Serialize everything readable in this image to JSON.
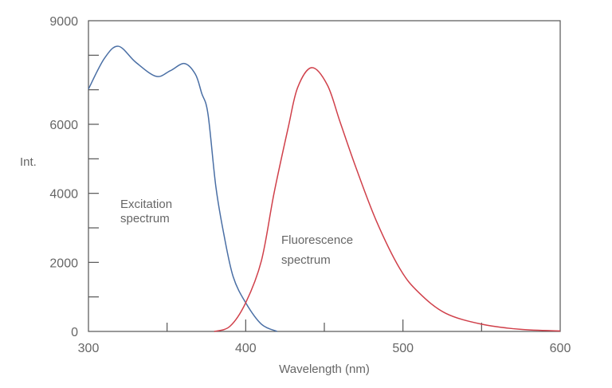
{
  "chart_data": {
    "type": "line",
    "title": "",
    "xlabel": "Wavelength (nm)",
    "ylabel": "Int.",
    "xlim": [
      300,
      600
    ],
    "ylim": [
      0,
      9000
    ],
    "x_ticks": [
      300,
      400,
      500,
      600
    ],
    "y_ticks": [
      0,
      2000,
      4000,
      6000,
      9000
    ],
    "grid": false,
    "series": [
      {
        "name": "Excitation spectrum",
        "color": "#4a6fa5",
        "x": [
          300,
          310,
          319,
          330,
          343,
          352,
          361,
          368,
          372,
          376,
          381,
          386,
          392,
          400,
          410,
          420
        ],
        "y": [
          7020,
          7900,
          8260,
          7800,
          7390,
          7550,
          7760,
          7450,
          6900,
          6300,
          4200,
          2840,
          1590,
          830,
          210,
          0
        ]
      },
      {
        "name": "Fluorescence spectrum",
        "color": "#d0404a",
        "x": [
          380,
          390,
          400,
          410,
          418,
          427,
          433,
          442,
          452,
          460,
          470,
          483,
          498,
          510,
          527,
          550,
          575,
          600
        ],
        "y": [
          0,
          150,
          830,
          2050,
          4000,
          5900,
          7060,
          7640,
          7130,
          6070,
          4760,
          3210,
          1820,
          1130,
          530,
          210,
          60,
          15
        ]
      }
    ],
    "annotations": [
      {
        "lines": [
          "Excitation",
          "spectrum"
        ]
      },
      {
        "lines": [
          "Fluorescence",
          "spectrum"
        ]
      }
    ]
  }
}
